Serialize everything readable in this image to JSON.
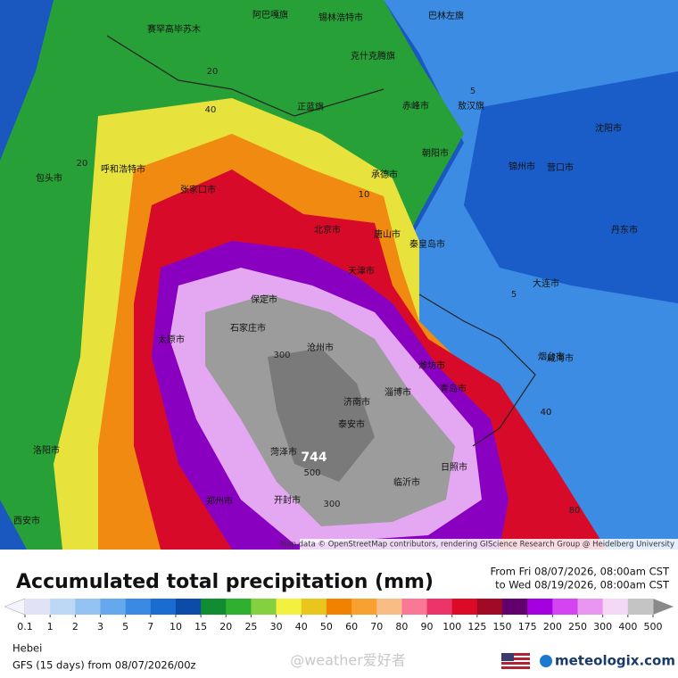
{
  "map": {
    "attribution": "Map data © OpenStreetMap contributors, rendering GIScience Research Group @ Heidelberg University",
    "max_label": "744",
    "labels": [
      "阿巴嘎旗",
      "锡林浩特市",
      "巴林左旗",
      "赛罕高毕苏木",
      "克什克腾旗",
      "正蓝旗",
      "赤峰市",
      "敖汉旗",
      "朝阳市",
      "沈阳市",
      "锦州市",
      "营口市",
      "大连市",
      "丹东市",
      "张家口市",
      "承德市",
      "北京市",
      "天津市",
      "唐山市",
      "秦皇岛市",
      "保定市",
      "石家庄市",
      "沧州市",
      "太原市",
      "济南市",
      "淄博市",
      "潍坊市",
      "青岛市",
      "烟台市",
      "威海市",
      "郑州市",
      "开封市",
      "菏泽市",
      "临沂市",
      "日照市",
      "泰安市",
      "呼和浩特市",
      "包头市",
      "西安市",
      "洛阳市"
    ],
    "contours": [
      "20",
      "40",
      "20",
      "5",
      "10",
      "40",
      "300",
      "500",
      "300",
      "40",
      "80",
      "5"
    ]
  },
  "legend": {
    "title": "Accumulated total precipitation (mm)",
    "from": "From Fri 08/07/2026, 08:00am CST",
    "to": "to Wed 08/19/2026, 08:00am CST",
    "levels": [
      0.1,
      1,
      2,
      3,
      5,
      7,
      10,
      15,
      20,
      25,
      30,
      40,
      50,
      60,
      70,
      80,
      90,
      100,
      125,
      150,
      175,
      200,
      250,
      300,
      400,
      500
    ],
    "colors": [
      "#e2e2f6",
      "#bcd8f6",
      "#94c2f2",
      "#66a8ee",
      "#3a8ae4",
      "#1a6cd0",
      "#0c4ca8",
      "#128c30",
      "#30b030",
      "#84d040",
      "#f4f040",
      "#e8c61e",
      "#f08200",
      "#f8a030",
      "#f8bc84",
      "#f87896",
      "#ec3468",
      "#dc0a24",
      "#a00a24",
      "#62006e",
      "#a400e0",
      "#d444f2",
      "#e896f2",
      "#f4d8f6",
      "#c4c4c4"
    ],
    "under_color": "#f4f4fc",
    "over_color": "#8a8a8a"
  },
  "footer": {
    "region": "Hebei",
    "model": "GFS (15 days) from 08/07/2026/00z",
    "watermark": "@weather爱好者",
    "brand": "meteologix.com"
  }
}
